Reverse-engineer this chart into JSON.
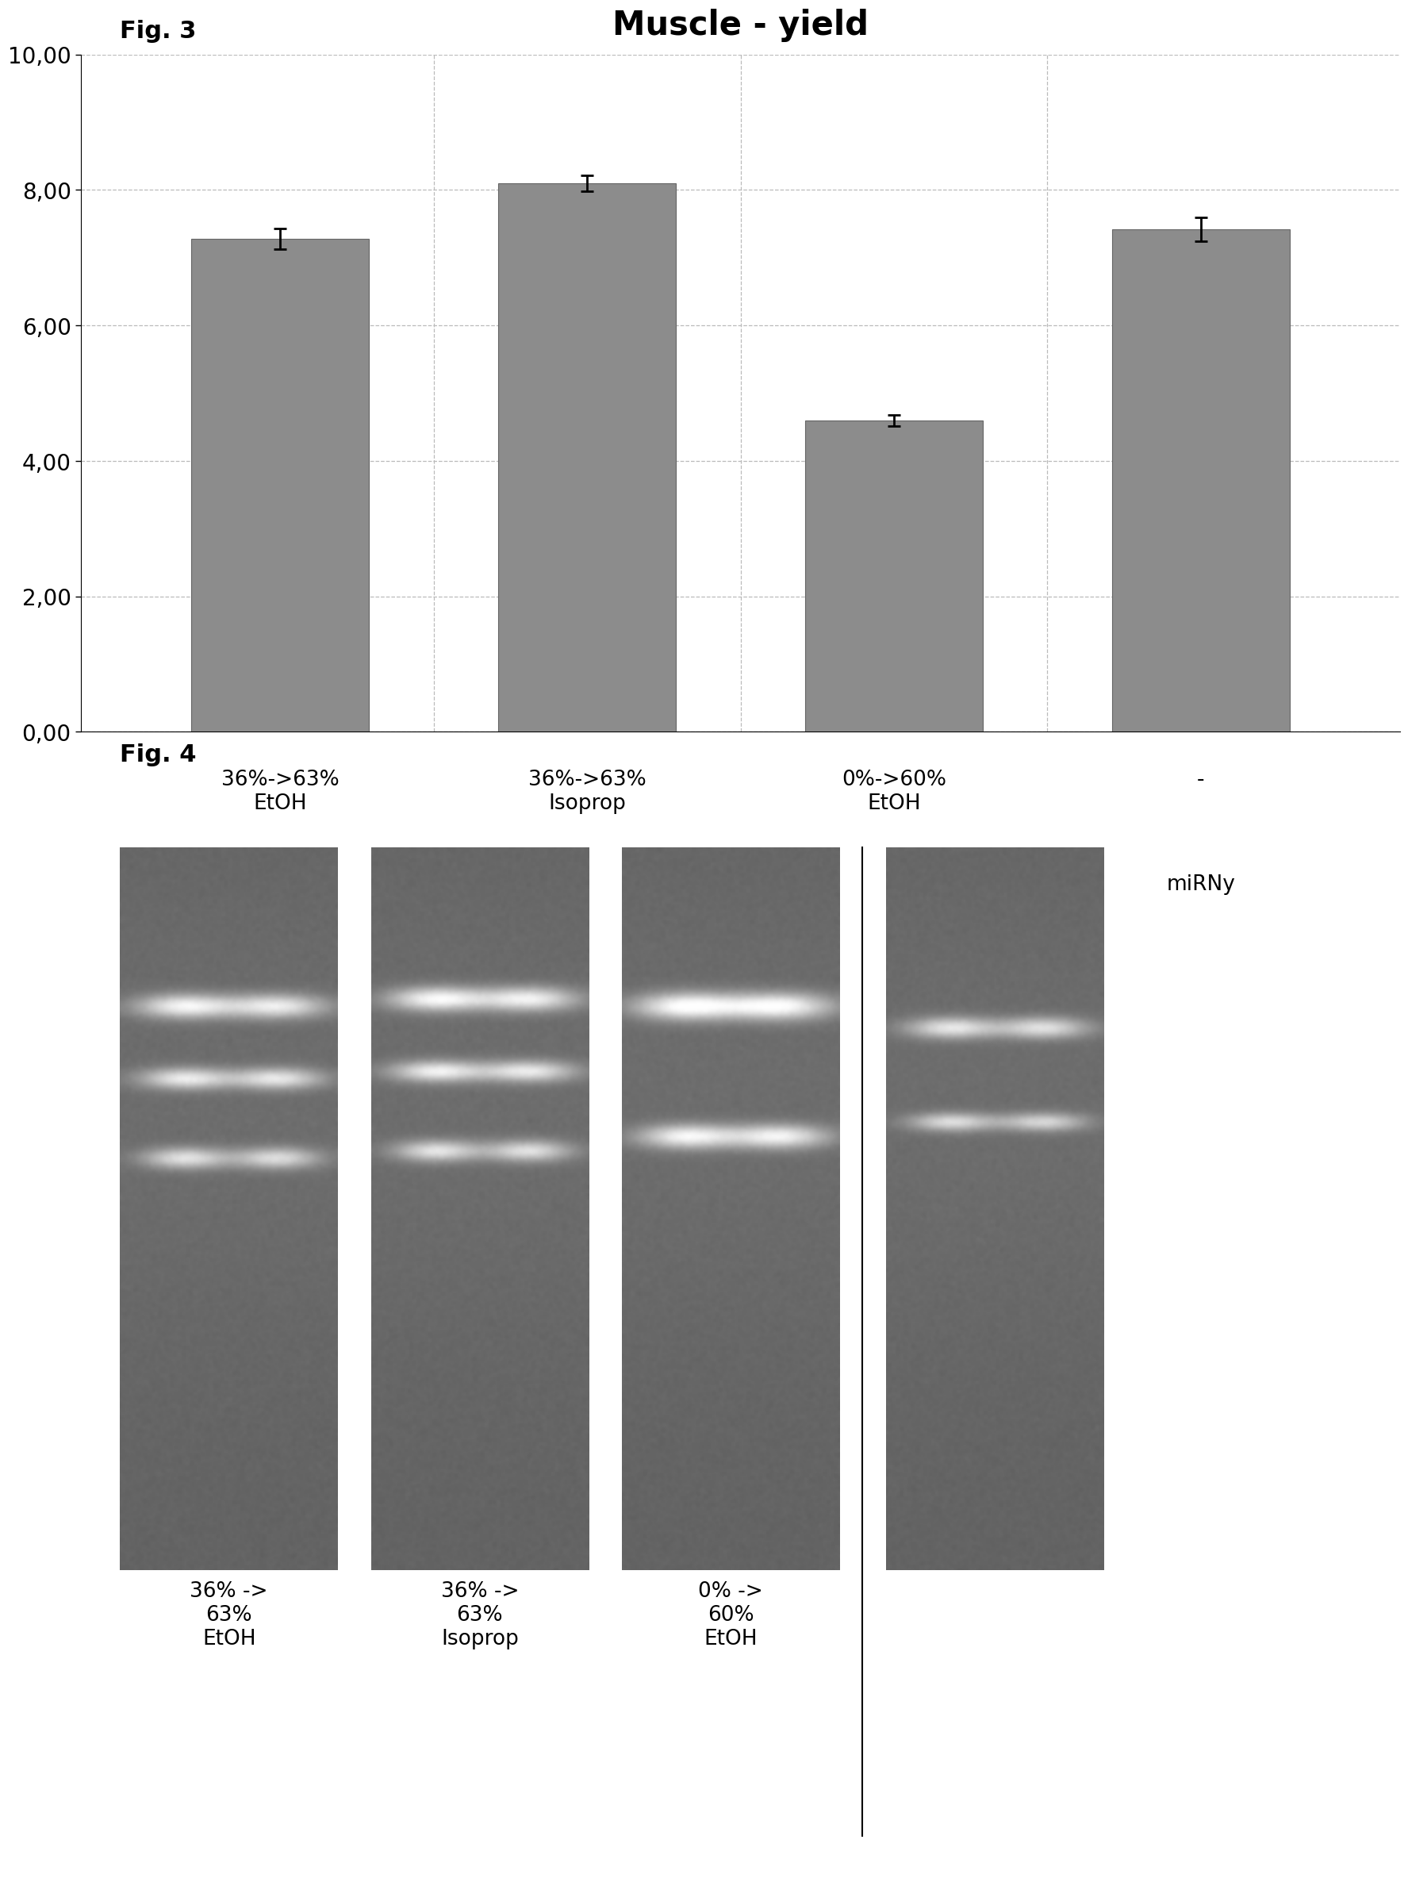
{
  "title": "Muscle - yield",
  "fig3_label": "Fig. 3",
  "fig4_label": "Fig. 4",
  "categories": [
    "36%->63%\nEtOH",
    "36%->63%\nIsoprop",
    "0%->60%\nEtOH",
    "-"
  ],
  "values": [
    7.28,
    8.1,
    4.6,
    7.42
  ],
  "errors": [
    0.15,
    0.12,
    0.08,
    0.18
  ],
  "bar_color": "#8c8c8c",
  "bar_edge_color": "#666666",
  "ylim": [
    0,
    10
  ],
  "yticks": [
    0.0,
    2.0,
    4.0,
    6.0,
    8.0,
    10.0
  ],
  "ytick_labels": [
    "0,00",
    "2,00",
    "4,00",
    "6,00",
    "8,00",
    "10,00"
  ],
  "mirny_label": "miRNy",
  "gel_labels_left": [
    "36% ->\n63%\nEtOH",
    "36% ->\n63%\nIsoprop",
    "0% ->\n60%\nEtOH"
  ],
  "gel_label_right": "miRNy",
  "background_color": "#ffffff",
  "grid_color": "#bbbbbb",
  "grid_linestyle": "--",
  "title_fontsize": 30,
  "fig_label_fontsize": 22,
  "tick_label_fontsize": 20,
  "bar_label_fontsize": 19,
  "mirny_label_fontsize": 19,
  "gel_fontsize": 19,
  "gel_mirny_fontsize": 26
}
